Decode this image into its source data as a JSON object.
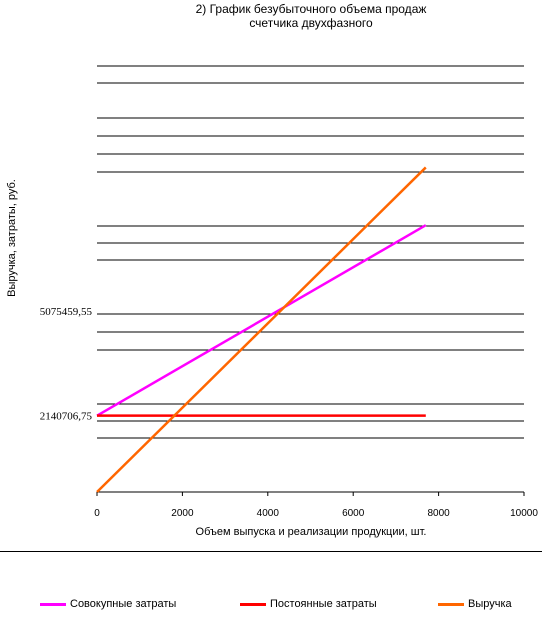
{
  "chart_data": {
    "type": "line",
    "title": "2) График безубыточного объема продаж\nсчетчика двухфазного",
    "xlabel": "Объем выпуска и реализации продукции, шт.",
    "ylabel": "Выручка, затраты, руб.",
    "xlim": [
      0,
      10000
    ],
    "x_ticks": [
      0,
      2000,
      4000,
      6000,
      8000,
      10000
    ],
    "y_tick_labels": [
      {
        "value": 5075459.55,
        "label": "5075459,55"
      },
      {
        "value": 2140706.75,
        "label": "2140706,75"
      }
    ],
    "grid": true,
    "legend_position": "bottom",
    "series": [
      {
        "name": "Совокупные затраты",
        "color": "#ff00ff",
        "x": [
          0,
          7700
        ],
        "y": [
          2140706.75,
          7480000
        ]
      },
      {
        "name": "Постоянные затраты",
        "color": "#ff0000",
        "x": [
          0,
          7700
        ],
        "y": [
          2140706.75,
          2140706.75
        ]
      },
      {
        "name": "Выручка",
        "color": "#ff6600",
        "x": [
          0,
          7700
        ],
        "y": [
          0,
          9100000
        ]
      }
    ]
  }
}
